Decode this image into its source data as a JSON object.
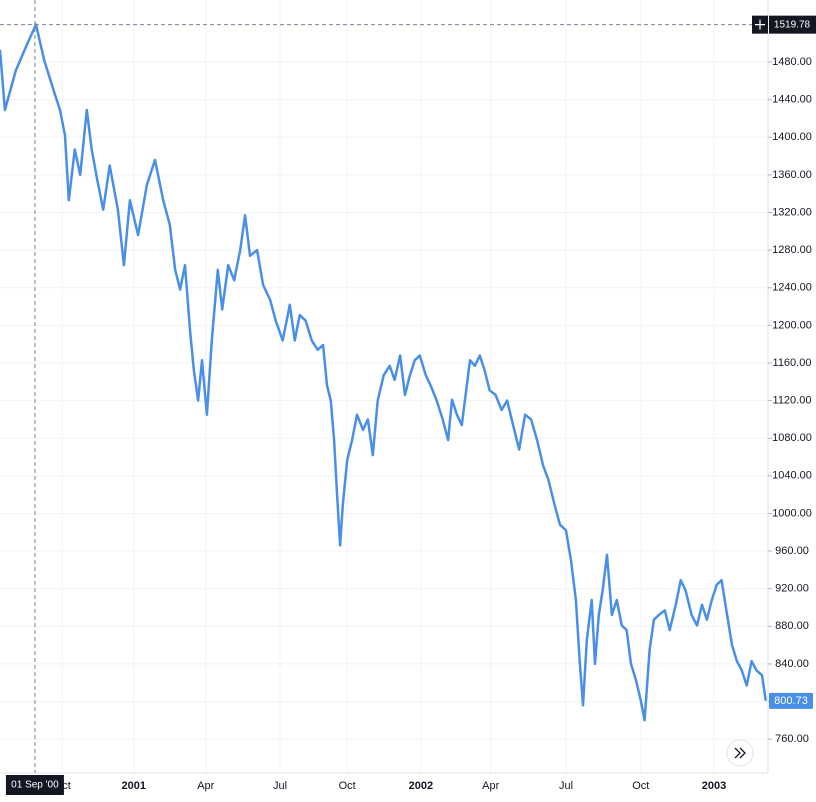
{
  "chart_data": {
    "type": "line",
    "color": "#4a8fe7",
    "grid": true,
    "x": [
      0,
      0.9,
      2.9,
      4.9,
      6.6,
      8.1,
      10.1,
      11,
      11.9,
      12.6,
      13.7,
      14.7,
      15.9,
      16.8,
      17.8,
      18.9,
      20.1,
      21.6,
      22.7,
      23.8,
      25.3,
      26.9,
      28.4,
      29.9,
      31.1,
      32.1,
      33,
      33.9,
      34.8,
      35.5,
      36.3,
      37,
      37.9,
      38.8,
      39.9,
      40.7,
      41.8,
      42.9,
      44,
      44.9,
      45.8,
      47.1,
      48.2,
      49.5,
      50.5,
      51.8,
      53.1,
      54,
      54.9,
      56,
      57.1,
      58.2,
      59.2,
      59.9,
      60.6,
      61.2,
      61.7,
      62.3,
      62.8,
      63.6,
      64.5,
      65.4,
      66.5,
      67.4,
      68.3,
      69.2,
      70.3,
      71.4,
      72.3,
      73.3,
      74.2,
      75.1,
      76,
      76.9,
      78,
      78.9,
      80,
      81.1,
      82.1,
      82.8,
      83.7,
      84.6,
      85.3,
      86.1,
      87,
      87.9,
      88.8,
      89.7,
      90.8,
      91.9,
      92.9,
      94,
      95.1,
      96.2,
      97.3,
      98.4,
      99.5,
      100.5,
      101.6,
      102.6,
      103.7,
      104.6,
      105.5,
      106.2,
      106.8,
      107.5,
      108.4,
      109,
      109.7,
      110.4,
      111.2,
      112.1,
      113,
      113.9,
      114.8,
      115.6,
      116.5,
      117.4,
      118.1,
      119,
      119.8,
      120.7,
      121.8,
      122.7,
      123.8,
      124.7,
      125.6,
      126.7,
      127.7,
      128.6,
      129.5,
      130.4,
      131.3,
      132.2,
      133.2,
      134.1,
      135,
      135.9,
      136.8,
      137.7,
      138.6,
      139.6,
      140.3
    ],
    "values": [
      1493,
      1429,
      1471,
      1498,
      1520,
      1482,
      1445,
      1429,
      1402,
      1333,
      1387,
      1360,
      1429,
      1387,
      1355,
      1323,
      1370,
      1323,
      1264,
      1333,
      1296,
      1349,
      1376,
      1333,
      1307,
      1259,
      1238,
      1264,
      1195,
      1153,
      1120,
      1163,
      1105,
      1184,
      1259,
      1217,
      1264,
      1248,
      1280,
      1317,
      1274,
      1280,
      1243,
      1227,
      1205,
      1184,
      1222,
      1184,
      1211,
      1205,
      1184,
      1174,
      1179,
      1136,
      1120,
      1078,
      1025,
      966,
      1009,
      1057,
      1078,
      1105,
      1089,
      1100,
      1062,
      1120,
      1147,
      1157,
      1142,
      1168,
      1126,
      1147,
      1163,
      1168,
      1147,
      1136,
      1120,
      1100,
      1078,
      1121,
      1105,
      1094,
      1126,
      1163,
      1157,
      1168,
      1152,
      1131,
      1126,
      1110,
      1120,
      1094,
      1068,
      1105,
      1100,
      1078,
      1051,
      1035,
      1009,
      988,
      982,
      950,
      908,
      843,
      796,
      865,
      908,
      840,
      892,
      918,
      956,
      892,
      908,
      881,
      876,
      840,
      823,
      801,
      780,
      855,
      887,
      892,
      897,
      876,
      903,
      929,
      918,
      892,
      881,
      903,
      887,
      908,
      924,
      929,
      892,
      860,
      843,
      833,
      817,
      843,
      833,
      828,
      800.73
    ],
    "xlim": [
      0,
      140.7
    ],
    "xticks": [
      {
        "value": 11.4,
        "label": "Oct"
      },
      {
        "value": 24.5,
        "label": "2001"
      },
      {
        "value": 37.7,
        "label": "Apr"
      },
      {
        "value": 51.3,
        "label": "Jul"
      },
      {
        "value": 63.6,
        "label": "Oct"
      },
      {
        "value": 77.1,
        "label": "2002"
      },
      {
        "value": 89.9,
        "label": "Apr"
      },
      {
        "value": 103.7,
        "label": "Jul"
      },
      {
        "value": 117.4,
        "label": "Oct"
      },
      {
        "value": 130.8,
        "label": "2003"
      }
    ],
    "ylim": [
      724,
      1546
    ],
    "yticks": [
      {
        "value": 760,
        "label": "760.00"
      },
      {
        "value": 800,
        "label": "800.00"
      },
      {
        "value": 840,
        "label": "840.00"
      },
      {
        "value": 880,
        "label": "880.00"
      },
      {
        "value": 920,
        "label": "920.00"
      },
      {
        "value": 960,
        "label": "960.00"
      },
      {
        "value": 1000,
        "label": "1000.00"
      },
      {
        "value": 1040,
        "label": "1040.00"
      },
      {
        "value": 1080,
        "label": "1080.00"
      },
      {
        "value": 1120,
        "label": "1120.00"
      },
      {
        "value": 1160,
        "label": "1160.00"
      },
      {
        "value": 1200,
        "label": "1200.00"
      },
      {
        "value": 1240,
        "label": "1240.00"
      },
      {
        "value": 1280,
        "label": "1280.00"
      },
      {
        "value": 1320,
        "label": "1320.00"
      },
      {
        "value": 1360,
        "label": "1360.00"
      },
      {
        "value": 1400,
        "label": "1400.00"
      },
      {
        "value": 1440,
        "label": "1440.00"
      },
      {
        "value": 1480,
        "label": "1480.00"
      }
    ],
    "crosshair": {
      "x": 6.4,
      "y": 1519.78,
      "x_label": "01 Sep '00"
    }
  }
}
